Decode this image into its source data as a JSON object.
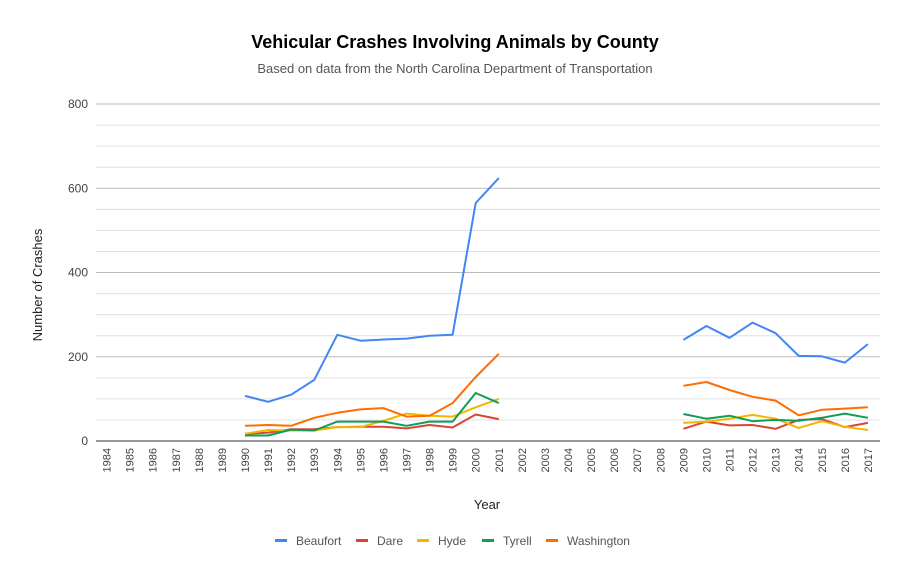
{
  "chart_data": {
    "type": "line",
    "title": "Vehicular Crashes Involving Animals by County",
    "subtitle": "Based on data from the North Carolina Department of Transportation",
    "xlabel": "Year",
    "ylabel": "Number of Crashes",
    "ylim": [
      0,
      800
    ],
    "yticks": [
      0,
      200,
      400,
      600,
      800
    ],
    "grid": true,
    "legend": "bottom",
    "x": [
      1984,
      1985,
      1986,
      1987,
      1988,
      1989,
      1990,
      1991,
      1992,
      1993,
      1994,
      1995,
      1996,
      1997,
      1998,
      1999,
      2000,
      2001,
      2002,
      2003,
      2004,
      2005,
      2006,
      2007,
      2008,
      2009,
      2010,
      2011,
      2012,
      2013,
      2014,
      2015,
      2016,
      2017
    ],
    "series": [
      {
        "name": "Beaufort",
        "color": "#4285F4",
        "values": [
          null,
          null,
          null,
          null,
          null,
          null,
          107,
          93,
          110,
          145,
          252,
          238,
          241,
          243,
          250,
          252,
          565,
          624,
          null,
          null,
          null,
          null,
          null,
          null,
          null,
          240,
          273,
          245,
          281,
          256,
          202,
          201,
          186,
          230
        ]
      },
      {
        "name": "Dare",
        "color": "#DB4437",
        "values": [
          null,
          null,
          null,
          null,
          null,
          null,
          17,
          20,
          28,
          28,
          33,
          34,
          34,
          30,
          38,
          32,
          63,
          52,
          null,
          null,
          null,
          null,
          null,
          null,
          null,
          29,
          46,
          37,
          38,
          29,
          50,
          52,
          33,
          43
        ]
      },
      {
        "name": "Hyde",
        "color": "#F4B400",
        "values": [
          null,
          null,
          null,
          null,
          null,
          null,
          17,
          26,
          25,
          25,
          33,
          33,
          48,
          65,
          60,
          58,
          80,
          100,
          null,
          null,
          null,
          null,
          null,
          null,
          null,
          43,
          46,
          53,
          62,
          53,
          31,
          47,
          34,
          26
        ]
      },
      {
        "name": "Tyrell",
        "color": "#0F9D58",
        "values": [
          null,
          null,
          null,
          null,
          null,
          null,
          13,
          13,
          27,
          25,
          46,
          46,
          46,
          36,
          46,
          46,
          114,
          90,
          null,
          null,
          null,
          null,
          null,
          null,
          null,
          64,
          53,
          60,
          47,
          50,
          48,
          55,
          65,
          55
        ]
      },
      {
        "name": "Washington",
        "color": "#FF6D00",
        "values": [
          null,
          null,
          null,
          null,
          null,
          null,
          36,
          38,
          36,
          55,
          67,
          75,
          78,
          58,
          60,
          90,
          152,
          207,
          null,
          null,
          null,
          null,
          null,
          null,
          null,
          131,
          140,
          121,
          105,
          96,
          61,
          74,
          77,
          80
        ]
      }
    ]
  }
}
